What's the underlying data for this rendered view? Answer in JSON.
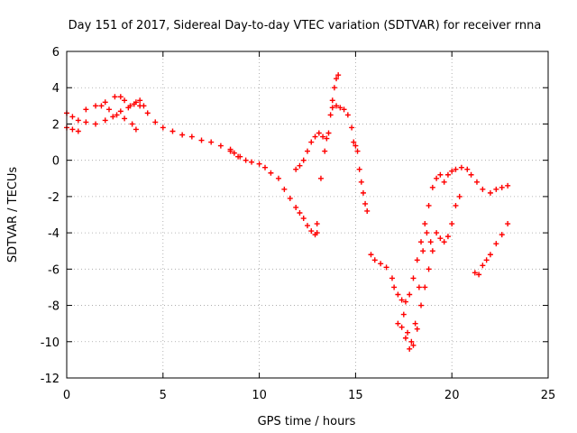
{
  "chart_data": {
    "type": "scatter",
    "title": "Day 151 of 2017, Sidereal Day-to-day VTEC variation (SDTVAR) for receiver rnna",
    "xlabel": "GPS time / hours",
    "ylabel": "SDTVAR / TECUs",
    "xlim": [
      0,
      25
    ],
    "ylim": [
      -12,
      6
    ],
    "xticks": [
      0,
      5,
      10,
      15,
      20,
      25
    ],
    "yticks": [
      6,
      4,
      2,
      0,
      -2,
      -4,
      -6,
      -8,
      -10,
      -12
    ],
    "grid": true,
    "legend": "none",
    "marker": "+",
    "color": "#ff0000",
    "series": [
      {
        "x": [
          0.0,
          0.3,
          0.6
        ],
        "y": [
          1.8,
          1.7,
          1.6
        ]
      },
      {
        "x": [
          0.0,
          0.3,
          0.6,
          1.0,
          1.5,
          2.0,
          2.4,
          2.8,
          3.2,
          3.5,
          3.8,
          4.2,
          4.6,
          5.0,
          5.5,
          6.0,
          6.5,
          7.0,
          7.5,
          8.0,
          8.5,
          9.0,
          9.3,
          9.6,
          10.0,
          10.3,
          10.6,
          11.0,
          11.3,
          11.6,
          11.9,
          12.1,
          12.3,
          12.5,
          12.7,
          12.9,
          13.0
        ],
        "y": [
          2.6,
          2.4,
          2.2,
          2.1,
          2.0,
          2.2,
          2.4,
          2.7,
          2.9,
          3.1,
          3.0,
          2.6,
          2.1,
          1.8,
          1.6,
          1.4,
          1.3,
          1.1,
          1.0,
          0.8,
          0.5,
          0.2,
          0.0,
          -0.1,
          -0.2,
          -0.4,
          -0.7,
          -1.0,
          -1.6,
          -2.1,
          -2.6,
          -2.9,
          -3.2,
          -3.6,
          -3.9,
          -4.1,
          -4.0
        ]
      },
      {
        "x": [
          1.0,
          1.5,
          2.0,
          2.5,
          2.8,
          3.0,
          3.3,
          3.6,
          3.8,
          4.0
        ],
        "y": [
          2.8,
          3.0,
          3.2,
          3.5,
          3.5,
          3.3,
          3.0,
          3.2,
          3.3,
          3.0
        ]
      },
      {
        "x": [
          1.8,
          2.2,
          2.6,
          3.0,
          3.4,
          3.6
        ],
        "y": [
          3.0,
          2.8,
          2.5,
          2.3,
          2.0,
          1.7
        ]
      },
      {
        "x": [
          8.5,
          8.7,
          8.9
        ],
        "y": [
          0.6,
          0.4,
          0.2
        ]
      },
      {
        "x": [
          11.9,
          12.1,
          12.3,
          12.5,
          12.7,
          12.9,
          13.1,
          13.3,
          13.5
        ],
        "y": [
          -0.5,
          -0.3,
          0.0,
          0.5,
          1.0,
          1.3,
          1.5,
          1.3,
          1.2
        ]
      },
      {
        "x": [
          13.0,
          13.2,
          13.4,
          13.6,
          13.7,
          13.8,
          13.9,
          14.0,
          14.1
        ],
        "y": [
          -3.5,
          -1.0,
          0.5,
          1.5,
          2.5,
          3.3,
          4.0,
          4.5,
          4.7
        ]
      },
      {
        "x": [
          13.8,
          14.0,
          14.2,
          14.4,
          14.6,
          14.8,
          14.9,
          15.0,
          15.1,
          15.2,
          15.3,
          15.4,
          15.5,
          15.6
        ],
        "y": [
          2.9,
          3.0,
          2.9,
          2.8,
          2.5,
          1.8,
          1.0,
          0.8,
          0.5,
          -0.5,
          -1.2,
          -1.8,
          -2.4,
          -2.8
        ]
      },
      {
        "x": [
          15.8,
          16.0,
          16.3,
          16.6,
          16.9,
          17.0,
          17.2,
          17.4,
          17.6,
          17.8,
          18.0,
          18.2,
          18.4,
          18.6,
          18.8,
          19.0,
          19.2,
          19.4,
          19.6,
          19.8,
          20.0,
          20.2,
          20.5,
          20.8,
          21.0,
          21.3,
          21.6,
          22.0,
          22.3,
          22.6,
          22.9
        ],
        "y": [
          -5.2,
          -5.5,
          -5.7,
          -5.9,
          -6.5,
          -7.0,
          -7.4,
          -7.7,
          -7.8,
          -7.4,
          -6.5,
          -5.5,
          -4.5,
          -3.5,
          -2.5,
          -1.5,
          -1.0,
          -0.8,
          -1.2,
          -0.8,
          -0.6,
          -0.5,
          -0.4,
          -0.5,
          -0.8,
          -1.2,
          -1.6,
          -1.8,
          -1.6,
          -1.5,
          -1.4
        ]
      },
      {
        "x": [
          17.2,
          17.4,
          17.6,
          17.8,
          18.0,
          18.2,
          18.4,
          18.6,
          18.8,
          19.0,
          19.2,
          19.4,
          19.6,
          19.8,
          20.0,
          20.2,
          20.4
        ],
        "y": [
          -9.0,
          -9.2,
          -9.8,
          -10.4,
          -10.2,
          -9.3,
          -8.0,
          -7.0,
          -6.0,
          -5.0,
          -4.0,
          -4.3,
          -4.5,
          -4.2,
          -3.5,
          -2.5,
          -2.0
        ]
      },
      {
        "x": [
          17.5,
          17.7,
          17.9,
          18.1,
          18.3,
          18.5,
          18.7,
          18.9
        ],
        "y": [
          -8.5,
          -9.5,
          -10.0,
          -9.0,
          -7.0,
          -5.0,
          -4.0,
          -4.5
        ]
      },
      {
        "x": [
          21.2,
          21.4,
          21.6,
          21.8,
          22.0,
          22.3,
          22.6,
          22.9
        ],
        "y": [
          -6.2,
          -6.3,
          -5.8,
          -5.5,
          -5.2,
          -4.6,
          -4.1,
          -3.5
        ]
      }
    ]
  }
}
